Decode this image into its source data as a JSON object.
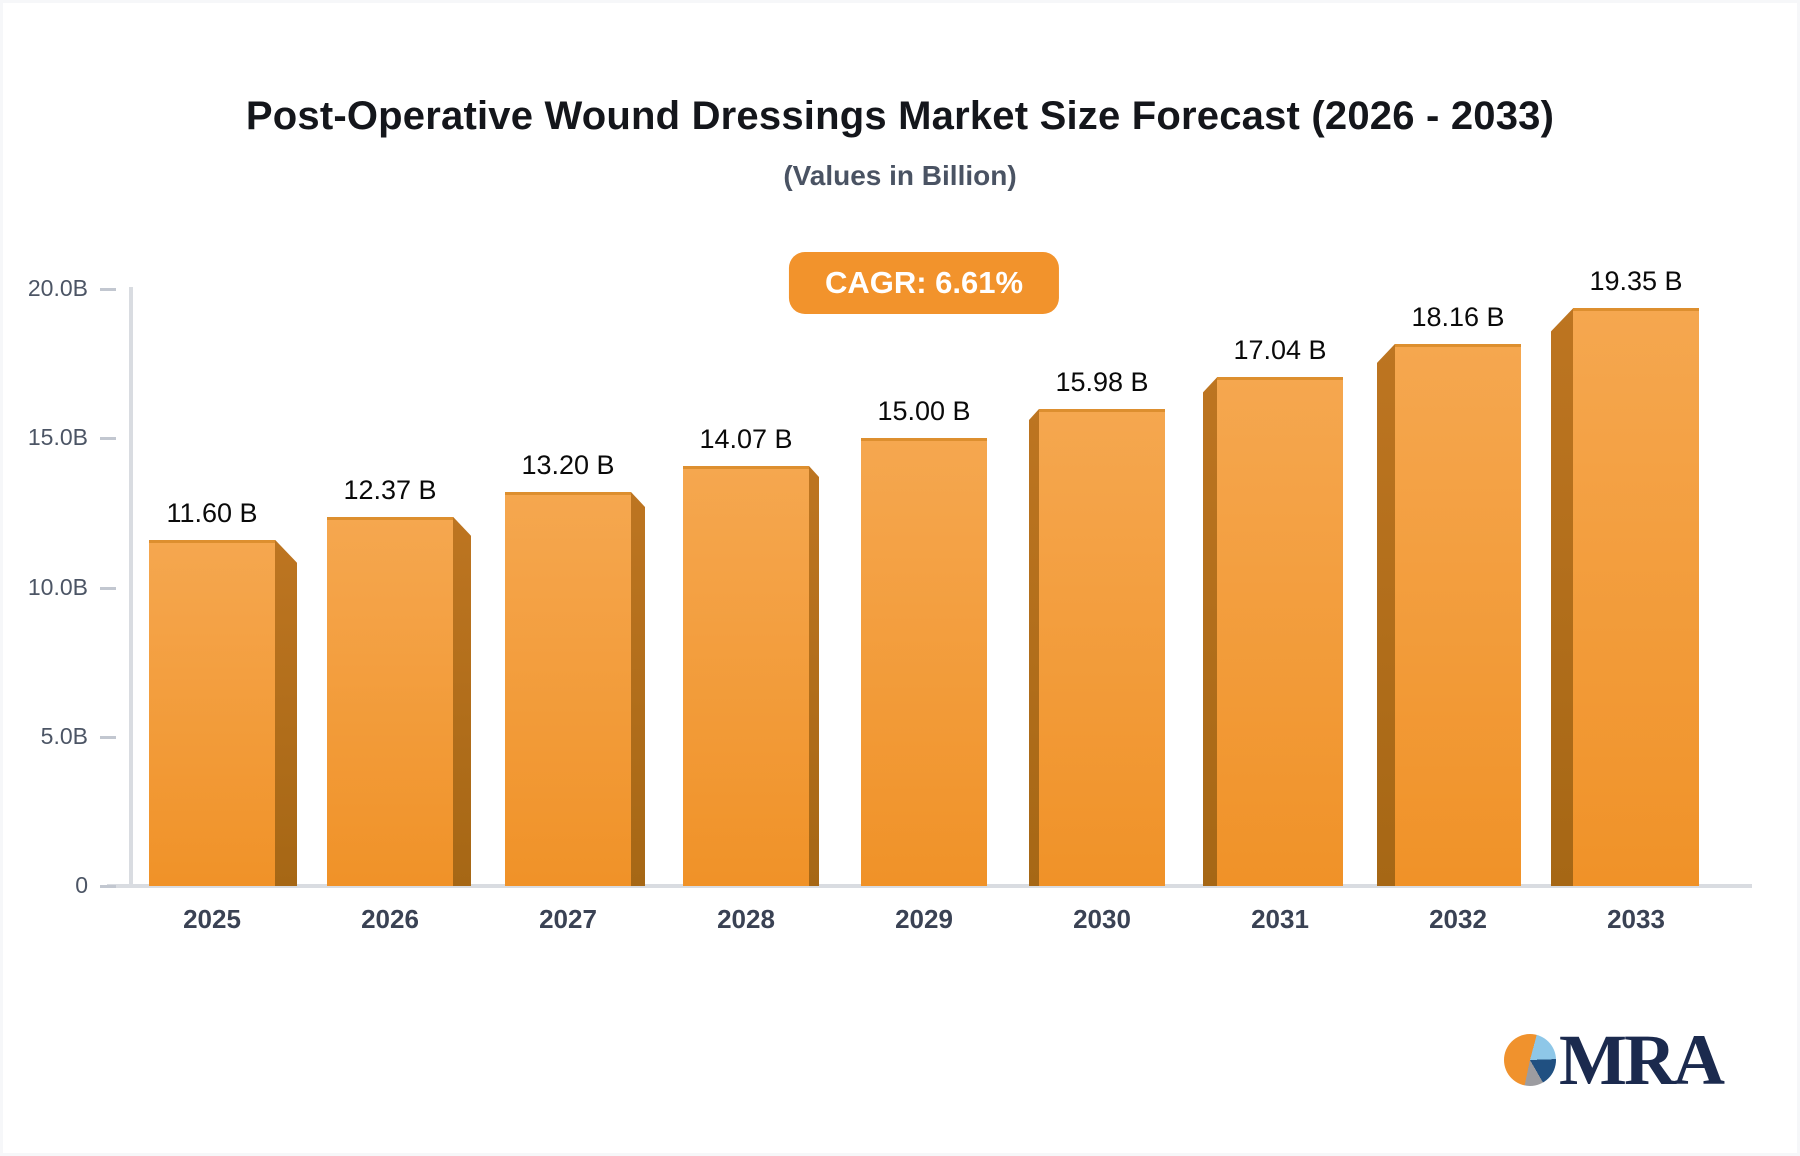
{
  "header": {
    "title": "Post-Operative Wound Dressings Market Size Forecast (2026 - 2033)",
    "subtitle": "(Values in Billion)",
    "cagr_badge": "CAGR: 6.61%"
  },
  "badge": {
    "bg": "#f2932c",
    "text_color": "#ffffff"
  },
  "chart_data": {
    "type": "bar",
    "title": "Post-Operative Wound Dressings Market Size Forecast (2026 - 2033)",
    "subtitle": "(Values in Billion)",
    "cagr_pct": 6.61,
    "categories": [
      "2025",
      "2026",
      "2027",
      "2028",
      "2029",
      "2030",
      "2031",
      "2032",
      "2033"
    ],
    "values": [
      11.6,
      12.37,
      13.2,
      14.07,
      15.0,
      15.98,
      17.04,
      18.16,
      19.35
    ],
    "value_labels": [
      "11.60 B",
      "12.37 B",
      "13.20 B",
      "14.07 B",
      "15.00 B",
      "15.98 B",
      "17.04 B",
      "18.16 B",
      "19.35 B"
    ],
    "ylim": [
      0,
      20
    ],
    "yticks": [
      {
        "value": 0,
        "label": "0"
      },
      {
        "value": 5,
        "label": "5.0B"
      },
      {
        "value": 10,
        "label": "10.0B"
      },
      {
        "value": 15,
        "label": "15.0B"
      },
      {
        "value": 20,
        "label": "20.0B"
      }
    ],
    "grid": false,
    "legend": false,
    "colors": {
      "front_top": "#f5a74f",
      "front_bottom": "#f09228",
      "top_edge": "#dd8f2f",
      "side_top": "#bd7521",
      "side_bottom": "#a66715",
      "axis": "#d9dce1",
      "tick_label": "#4c5565",
      "category_label": "#3a4254",
      "value_label": "#0a0a0a"
    }
  },
  "logo": {
    "text": "MRA",
    "text_color": "#1b2a4e",
    "pie_colors": {
      "orange": "#f0922d",
      "light_blue": "#8ec7e8",
      "navy": "#205081",
      "gray": "#9c9ca0"
    }
  }
}
